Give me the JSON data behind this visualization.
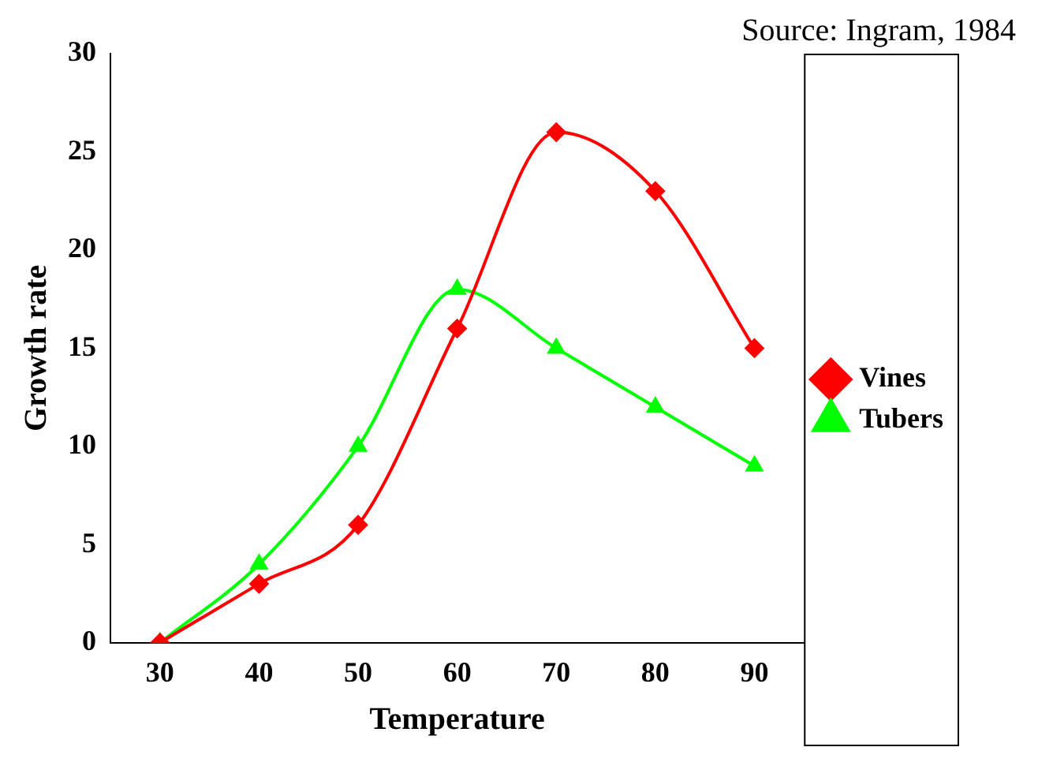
{
  "chart_data": {
    "type": "line",
    "xlabel": "Temperature",
    "ylabel": "Growth rate",
    "annotations": [
      "Source: Ingram, 1984"
    ],
    "categories": [
      "30",
      "40",
      "50",
      "60",
      "70",
      "80",
      "90"
    ],
    "series": [
      {
        "name": "Vines",
        "color": "#ff0000",
        "marker": "diamond",
        "values": [
          0,
          3,
          6,
          16,
          26,
          23,
          15
        ]
      },
      {
        "name": "Tubers",
        "color": "#00ff00",
        "marker": "triangle",
        "values": [
          0,
          4,
          10,
          18,
          15,
          12,
          9
        ]
      }
    ],
    "ylim": [
      0,
      30
    ],
    "yticks": [
      0,
      5,
      10,
      15,
      20,
      25,
      30
    ],
    "grid": false,
    "legend": "right"
  }
}
